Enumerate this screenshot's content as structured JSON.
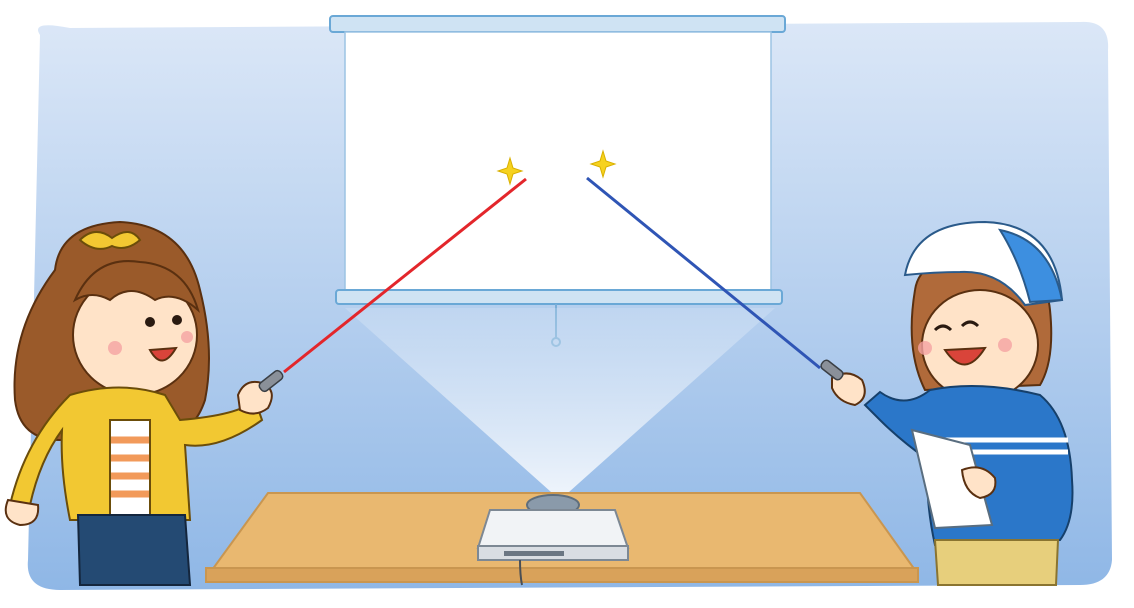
{
  "illustration": {
    "subject": "projection-screen-laser-pointers",
    "colors": {
      "background_top": "#dbe7f7",
      "background_bottom": "#8fb7e6",
      "screen": "#ffffff",
      "screen_frame": "#cfe3f3",
      "table": "#e9b870",
      "table_edge": "#c99650",
      "projector": "#f1f3f6",
      "laser_red": "#e3262b",
      "laser_blue": "#2f55b5",
      "sparkle": "#f6d21f",
      "girl_jacket": "#f2c832",
      "girl_hair": "#9a5a2a",
      "boy_hoodie": "#2b77c9",
      "boy_cap": "#3d8fe0",
      "boy_pants": "#e7cf7c"
    }
  }
}
